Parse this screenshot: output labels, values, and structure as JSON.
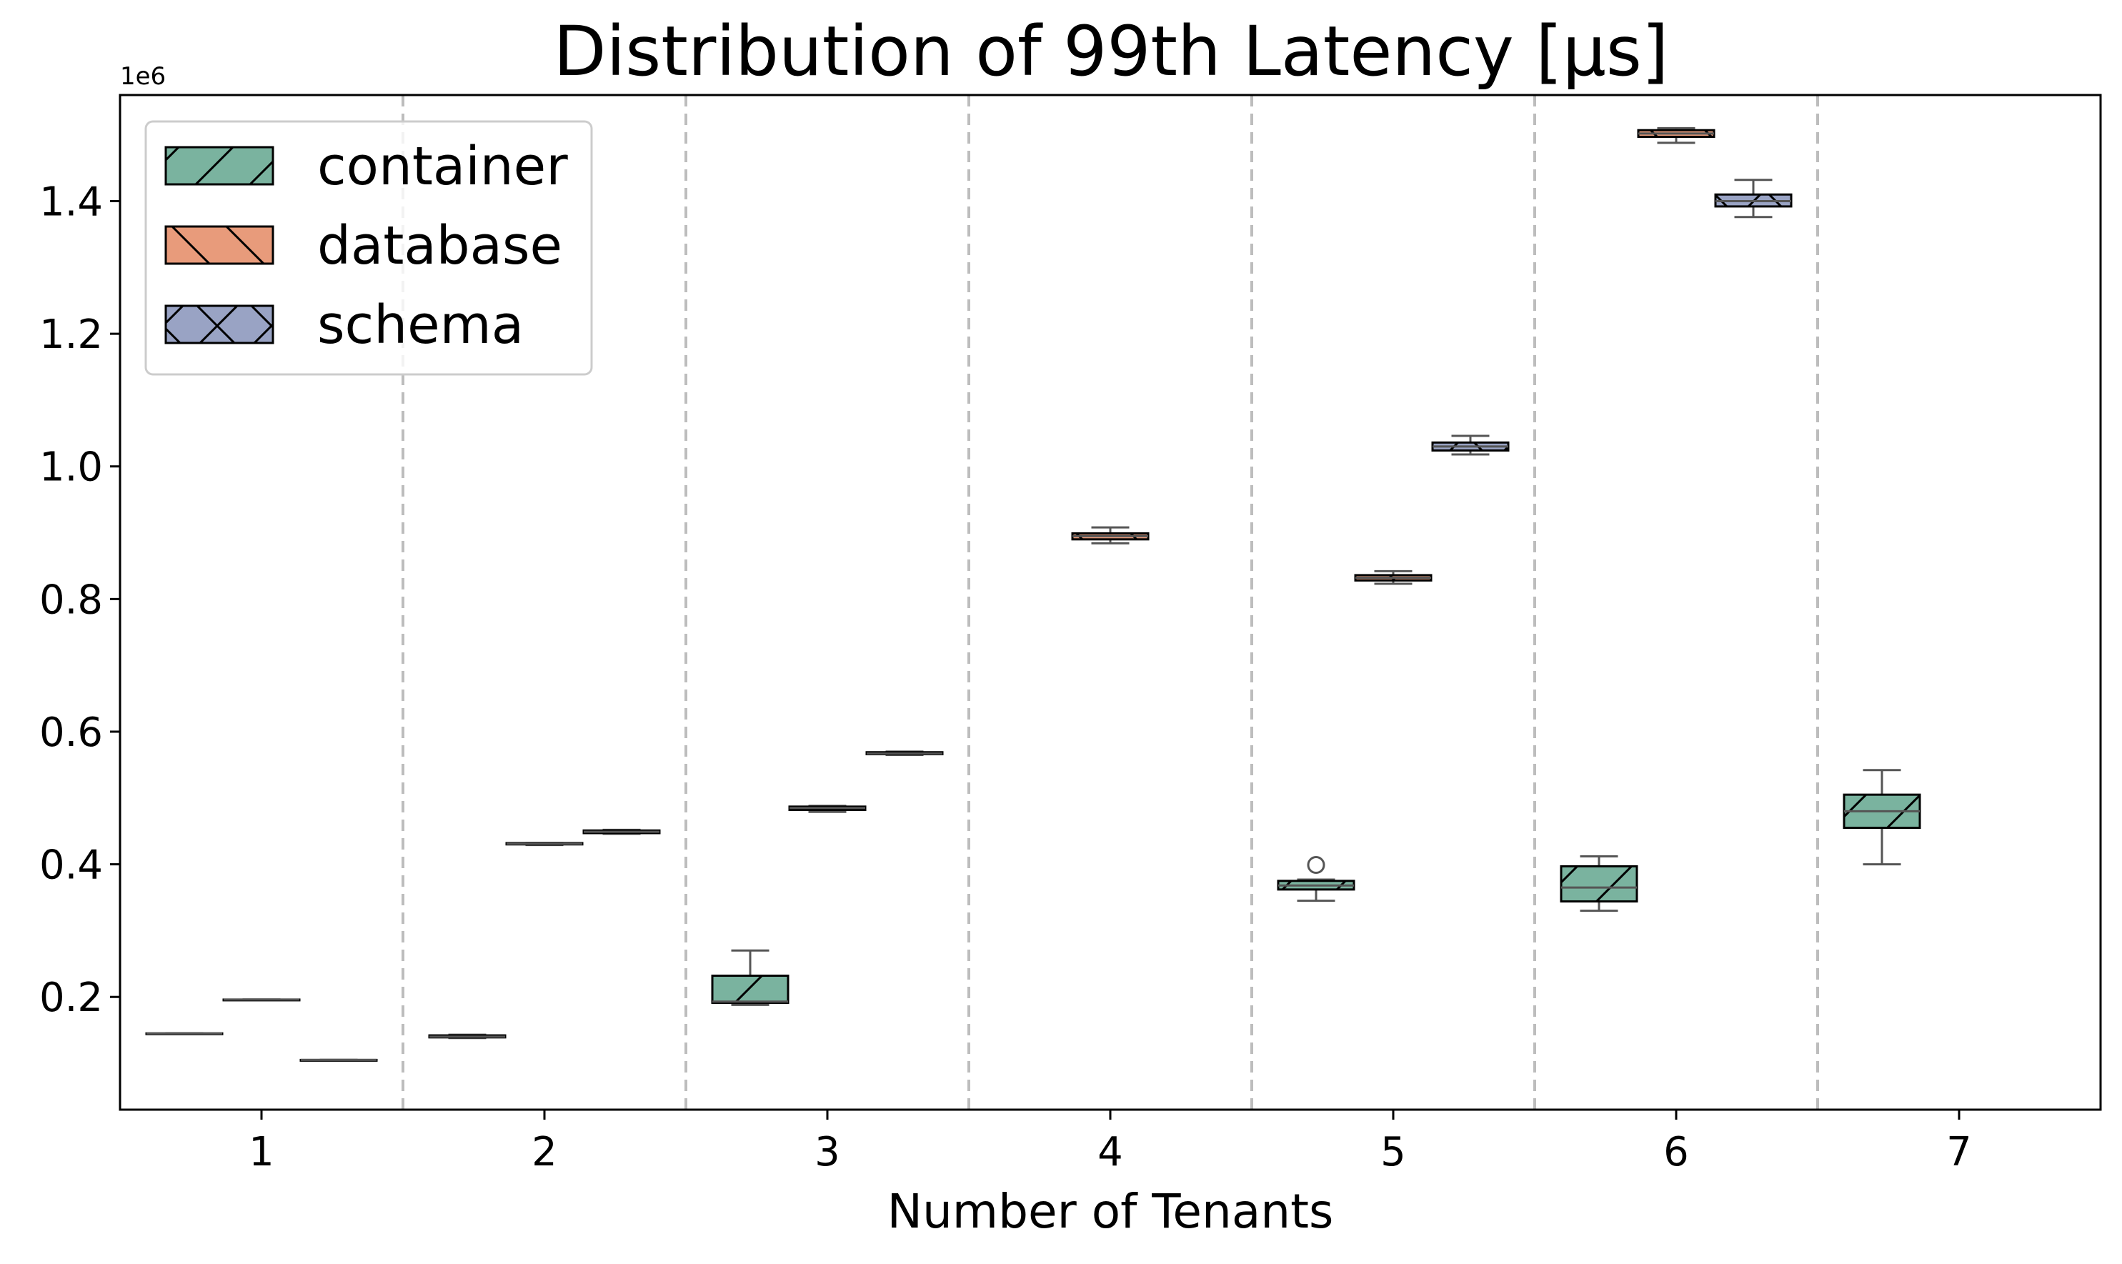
{
  "chart_data": {
    "type": "box",
    "title": "Distribution of 99th Latency [μs]",
    "xlabel": "Number of Tenants",
    "ylabel": "",
    "y_offset_label": "1e6",
    "categories": [
      "1",
      "2",
      "3",
      "4",
      "5",
      "6",
      "7"
    ],
    "ylim": [
      0.03,
      1.56
    ],
    "y_ticks": [
      0.2,
      0.4,
      0.6,
      0.8,
      1.0,
      1.2,
      1.4
    ],
    "y_tick_labels": [
      "0.2",
      "0.4",
      "0.6",
      "0.8",
      "1.0",
      "1.2",
      "1.4"
    ],
    "group_separators": true,
    "legend_position": "top-left",
    "series": [
      {
        "name": "container",
        "color": "#7ab39f",
        "hatch": "/",
        "boxes": [
          {
            "category": "1",
            "whislo": 0.145,
            "q1": 0.145,
            "med": 0.145,
            "q3": 0.145,
            "whishi": 0.145,
            "fliers": []
          },
          {
            "category": "2",
            "whislo": 0.138,
            "q1": 0.139,
            "med": 0.14,
            "q3": 0.142,
            "whishi": 0.143,
            "fliers": []
          },
          {
            "category": "3",
            "whislo": 0.188,
            "q1": 0.191,
            "med": 0.193,
            "q3": 0.232,
            "whishi": 0.27,
            "fliers": []
          },
          {
            "category": "5",
            "whislo": 0.345,
            "q1": 0.362,
            "med": 0.368,
            "q3": 0.375,
            "whishi": 0.377,
            "fliers": [
              0.399
            ]
          },
          {
            "category": "6",
            "whislo": 0.33,
            "q1": 0.344,
            "med": 0.365,
            "q3": 0.397,
            "whishi": 0.412,
            "fliers": []
          },
          {
            "category": "7",
            "whislo": 0.4,
            "q1": 0.455,
            "med": 0.48,
            "q3": 0.505,
            "whishi": 0.542,
            "fliers": []
          }
        ]
      },
      {
        "name": "database",
        "color": "#e89b7b",
        "hatch": "\\",
        "boxes": [
          {
            "category": "1",
            "whislo": 0.196,
            "q1": 0.196,
            "med": 0.196,
            "q3": 0.196,
            "whishi": 0.196,
            "fliers": []
          },
          {
            "category": "2",
            "whislo": 0.429,
            "q1": 0.43,
            "med": 0.431,
            "q3": 0.432,
            "whishi": 0.432,
            "fliers": []
          },
          {
            "category": "3",
            "whislo": 0.479,
            "q1": 0.482,
            "med": 0.485,
            "q3": 0.487,
            "whishi": 0.488,
            "fliers": []
          },
          {
            "category": "4",
            "whislo": 0.884,
            "q1": 0.89,
            "med": 0.895,
            "q3": 0.899,
            "whishi": 0.908,
            "fliers": []
          },
          {
            "category": "5",
            "whislo": 0.823,
            "q1": 0.828,
            "med": 0.832,
            "q3": 0.836,
            "whishi": 0.842,
            "fliers": []
          },
          {
            "category": "6",
            "whislo": 1.488,
            "q1": 1.497,
            "med": 1.502,
            "q3": 1.507,
            "whishi": 1.51,
            "fliers": []
          }
        ]
      },
      {
        "name": "schema",
        "color": "#99a3c4",
        "hatch": "x",
        "boxes": [
          {
            "category": "1",
            "whislo": 0.105,
            "q1": 0.105,
            "med": 0.105,
            "q3": 0.105,
            "whishi": 0.105,
            "fliers": []
          },
          {
            "category": "2",
            "whislo": 0.446,
            "q1": 0.447,
            "med": 0.449,
            "q3": 0.451,
            "whishi": 0.452,
            "fliers": []
          },
          {
            "category": "3",
            "whislo": 0.565,
            "q1": 0.566,
            "med": 0.567,
            "q3": 0.569,
            "whishi": 0.57,
            "fliers": []
          },
          {
            "category": "5",
            "whislo": 1.018,
            "q1": 1.024,
            "med": 1.03,
            "q3": 1.036,
            "whishi": 1.046,
            "fliers": []
          },
          {
            "category": "6",
            "whislo": 1.376,
            "q1": 1.392,
            "med": 1.4,
            "q3": 1.41,
            "whishi": 1.432,
            "fliers": []
          }
        ]
      }
    ]
  }
}
